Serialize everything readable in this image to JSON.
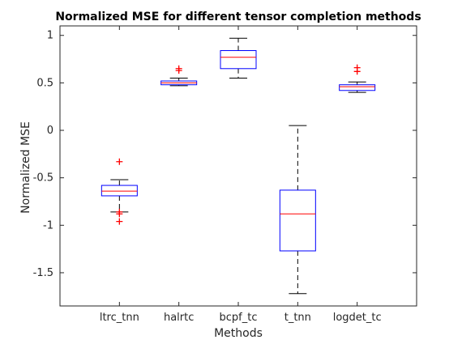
{
  "chart_data": {
    "type": "box",
    "title": "Normalized MSE for different tensor completion methods",
    "xlabel": "Methods",
    "ylabel": "Normalized MSE",
    "ylim": [
      -1.85,
      1.1
    ],
    "yticks": [
      1,
      0.5,
      0,
      -0.5,
      -1,
      -1.5
    ],
    "ytick_labels": [
      "1",
      "0.5",
      "0",
      "-0.5",
      "-1",
      "-1.5"
    ],
    "categories": [
      "ltrc_tnn",
      "halrtc",
      "bcpf_tc",
      "t_tnn",
      "logdet_tc"
    ],
    "boxes": [
      {
        "category": "ltrc_tnn",
        "whisker_low": -0.86,
        "q1": -0.69,
        "median": -0.64,
        "q3": -0.58,
        "whisker_high": -0.52,
        "outliers": [
          -0.33,
          -0.86,
          -0.88,
          -0.96
        ]
      },
      {
        "category": "halrtc",
        "whisker_low": 0.47,
        "q1": 0.48,
        "median": 0.5,
        "q3": 0.52,
        "whisker_high": 0.55,
        "outliers": [
          0.63,
          0.65
        ]
      },
      {
        "category": "bcpf_tc",
        "whisker_low": 0.55,
        "q1": 0.65,
        "median": 0.77,
        "q3": 0.84,
        "whisker_high": 0.97,
        "outliers": []
      },
      {
        "category": "t_tnn",
        "whisker_low": -1.72,
        "q1": -1.27,
        "median": -0.88,
        "q3": -0.63,
        "whisker_high": 0.05,
        "outliers": []
      },
      {
        "category": "logdet_tc",
        "whisker_low": 0.4,
        "q1": 0.42,
        "median": 0.46,
        "q3": 0.48,
        "whisker_high": 0.51,
        "outliers": [
          0.62,
          0.66
        ]
      }
    ],
    "grid": false,
    "colors": {
      "box": "#0000ff",
      "median": "#ff0000",
      "whisker": "#000000",
      "outlier": "#ff0000",
      "axes": "#262626"
    }
  }
}
